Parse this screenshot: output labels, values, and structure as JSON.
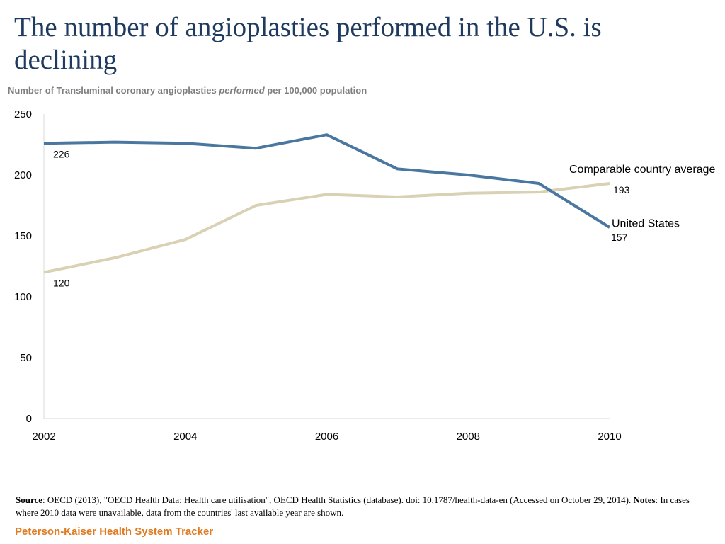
{
  "header": {
    "title": "The number of angioplasties performed in the U.S. is declining",
    "subtitle_pre": "Number of Transluminal coronary angioplasties ",
    "subtitle_em": "performed",
    "subtitle_post": " per 100,000 population"
  },
  "chart_data": {
    "type": "line",
    "title": "The number of angioplasties performed in the U.S. is declining",
    "subtitle": "Number of Transluminal coronary angioplasties performed per 100,000 population",
    "xlabel": "",
    "ylabel": "",
    "x": [
      2002,
      2003,
      2004,
      2005,
      2006,
      2007,
      2008,
      2009,
      2010
    ],
    "x_ticks": [
      "2002",
      "2004",
      "2006",
      "2008",
      "2010"
    ],
    "y_ticks": [
      "0",
      "50",
      "100",
      "150",
      "200",
      "250"
    ],
    "xlim": [
      2002,
      2010
    ],
    "ylim": [
      0,
      250
    ],
    "grid": false,
    "legend": "direct labels at line ends",
    "series": [
      {
        "name": "United States",
        "color": "#4a77a0",
        "values": [
          226,
          227,
          226,
          222,
          233,
          205,
          200,
          193,
          157
        ],
        "start_label": "226",
        "end_label": "157"
      },
      {
        "name": "Comparable country average",
        "color": "#d9d1b4",
        "values": [
          120,
          132,
          147,
          175,
          184,
          182,
          185,
          186,
          193
        ],
        "start_label": "120",
        "end_label": "193"
      }
    ]
  },
  "footer": {
    "source_label": "Source",
    "source_text": ": OECD (2013), \"OECD Health Data: Health care utilisation\", OECD Health Statistics (database).  doi: 10.1787/health-data-en (Accessed on October 29, 2014). ",
    "notes_label": "Notes",
    "notes_text": ": In cases where 2010 data were unavailable, data from the countries' last available year are shown.",
    "brand": "Peterson-Kaiser Health System Tracker",
    "brand_color": "#e07b1f"
  }
}
